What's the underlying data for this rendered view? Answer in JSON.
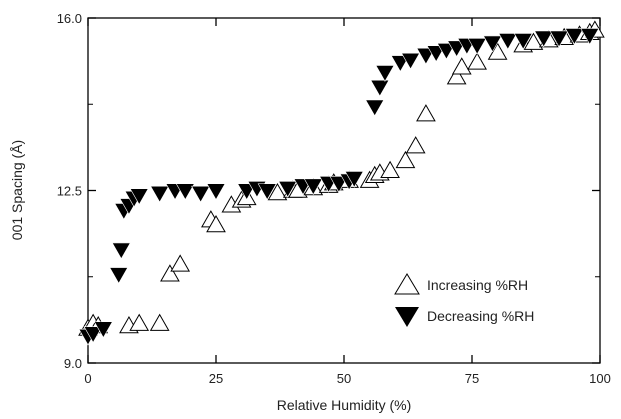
{
  "chart_data": {
    "type": "scatter",
    "title": "",
    "xlabel": "Relative Humidity (%)",
    "ylabel": "001 Spacing (Å)",
    "xlim": [
      0,
      100
    ],
    "ylim": [
      9.0,
      16.0
    ],
    "xticks": [
      0,
      25,
      50,
      75,
      100
    ],
    "yticks": [
      9.0,
      12.5,
      16.0
    ],
    "xtick_labels": [
      "0",
      "25",
      "50",
      "75",
      "100"
    ],
    "ytick_labels": [
      "9.0",
      "12.5",
      "16.0"
    ],
    "grid": false,
    "legend_position": "bottom-right",
    "series": [
      {
        "name": "Increasing %RH",
        "marker": "open-triangle-up",
        "color": "#000000",
        "points": [
          [
            0,
            9.7
          ],
          [
            1,
            9.8
          ],
          [
            2,
            9.75
          ],
          [
            8,
            9.75
          ],
          [
            10,
            9.8
          ],
          [
            14,
            9.8
          ],
          [
            16,
            10.8
          ],
          [
            18,
            11.0
          ],
          [
            24,
            11.9
          ],
          [
            25,
            11.8
          ],
          [
            28,
            12.2
          ],
          [
            30,
            12.3
          ],
          [
            31,
            12.35
          ],
          [
            37,
            12.45
          ],
          [
            40,
            12.5
          ],
          [
            41,
            12.5
          ],
          [
            44,
            12.55
          ],
          [
            47,
            12.6
          ],
          [
            48,
            12.65
          ],
          [
            51,
            12.7
          ],
          [
            55,
            12.7
          ],
          [
            56,
            12.8
          ],
          [
            57,
            12.85
          ],
          [
            59,
            12.9
          ],
          [
            62,
            13.1
          ],
          [
            64,
            13.4
          ],
          [
            66,
            14.05
          ],
          [
            72,
            14.8
          ],
          [
            73,
            15.0
          ],
          [
            76,
            15.1
          ],
          [
            80,
            15.3
          ],
          [
            85,
            15.45
          ],
          [
            87,
            15.5
          ],
          [
            90,
            15.55
          ],
          [
            93,
            15.6
          ],
          [
            96,
            15.65
          ],
          [
            98,
            15.7
          ],
          [
            99,
            15.75
          ]
        ]
      },
      {
        "name": "Decreasing %RH",
        "marker": "filled-triangle-down",
        "color": "#000000",
        "points": [
          [
            0,
            9.55
          ],
          [
            1,
            9.6
          ],
          [
            3,
            9.7
          ],
          [
            6,
            10.8
          ],
          [
            6.5,
            11.3
          ],
          [
            7,
            12.1
          ],
          [
            8,
            12.2
          ],
          [
            9,
            12.35
          ],
          [
            10,
            12.4
          ],
          [
            14,
            12.45
          ],
          [
            17,
            12.5
          ],
          [
            19,
            12.5
          ],
          [
            22,
            12.45
          ],
          [
            25,
            12.5
          ],
          [
            31,
            12.5
          ],
          [
            33,
            12.55
          ],
          [
            35,
            12.5
          ],
          [
            39,
            12.55
          ],
          [
            42,
            12.6
          ],
          [
            44,
            12.6
          ],
          [
            47,
            12.65
          ],
          [
            49,
            12.65
          ],
          [
            51,
            12.7
          ],
          [
            52,
            12.75
          ],
          [
            56,
            14.2
          ],
          [
            57,
            14.6
          ],
          [
            58,
            14.9
          ],
          [
            61,
            15.1
          ],
          [
            63,
            15.15
          ],
          [
            66,
            15.25
          ],
          [
            68,
            15.3
          ],
          [
            70,
            15.35
          ],
          [
            72,
            15.4
          ],
          [
            74,
            15.45
          ],
          [
            76,
            15.45
          ],
          [
            79,
            15.5
          ],
          [
            82,
            15.55
          ],
          [
            85,
            15.55
          ],
          [
            89,
            15.6
          ],
          [
            92,
            15.6
          ],
          [
            95,
            15.65
          ],
          [
            98,
            15.65
          ]
        ]
      }
    ]
  }
}
